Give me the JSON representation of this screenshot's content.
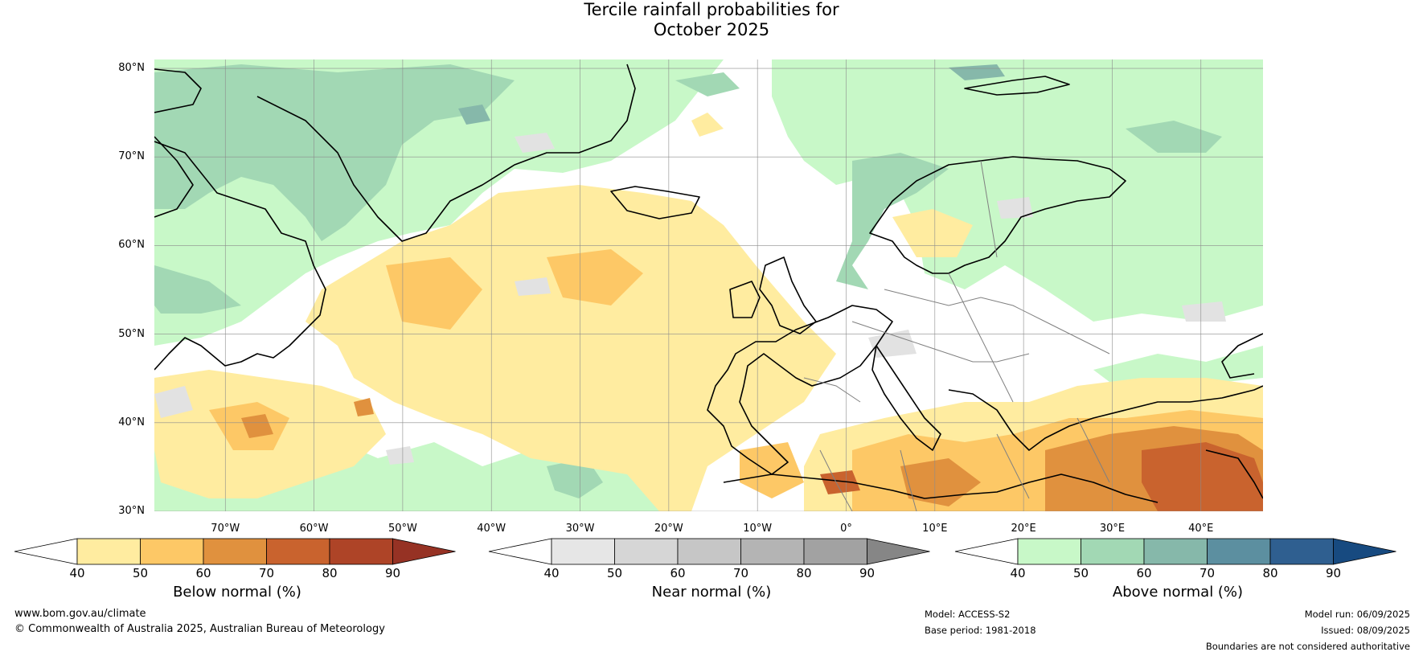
{
  "title": {
    "line1": "Tercile rainfall probabilities for",
    "line2": "October 2025"
  },
  "map": {
    "lat_labels": [
      "80°N",
      "70°N",
      "60°N",
      "50°N",
      "40°N",
      "30°N"
    ],
    "lon_labels": [
      "70°W",
      "60°W",
      "50°W",
      "40°W",
      "30°W",
      "20°W",
      "10°W",
      "0°",
      "10°E",
      "20°E",
      "30°E",
      "40°E"
    ],
    "lat_range": [
      30,
      81
    ],
    "lon_range": [
      -78,
      47
    ]
  },
  "colorbars": [
    {
      "title": "Below normal (%)",
      "ticks": [
        "40",
        "50",
        "60",
        "70",
        "80",
        "90"
      ],
      "colors": [
        "#ffeca0",
        "#fdc866",
        "#e0913e",
        "#c9632e",
        "#ae4427"
      ],
      "extend_color": "#963224"
    },
    {
      "title": "Near normal (%)",
      "ticks": [
        "40",
        "50",
        "60",
        "70",
        "80",
        "90"
      ],
      "colors": [
        "#e6e6e6",
        "#d6d6d6",
        "#c6c6c6",
        "#b4b4b4",
        "#a2a2a2"
      ],
      "extend_color": "#868686"
    },
    {
      "title": "Above normal (%)",
      "ticks": [
        "40",
        "50",
        "60",
        "70",
        "80",
        "90"
      ],
      "colors": [
        "#c8f8c8",
        "#a2d8b4",
        "#86b8aa",
        "#5c8fa0",
        "#2f5f90"
      ],
      "extend_color": "#174a80"
    }
  ],
  "footer": {
    "website": "www.bom.gov.au/climate",
    "copyright": "© Commonwealth of Australia 2025, Australian Bureau of Meteorology",
    "model": "Model: ACCESS-S2",
    "base_period": "Base period: 1981-2018",
    "model_run": "Model run: 06/09/2025",
    "issued": "Issued: 08/09/2025",
    "disclaimer": "Boundaries are not considered authoritative"
  }
}
